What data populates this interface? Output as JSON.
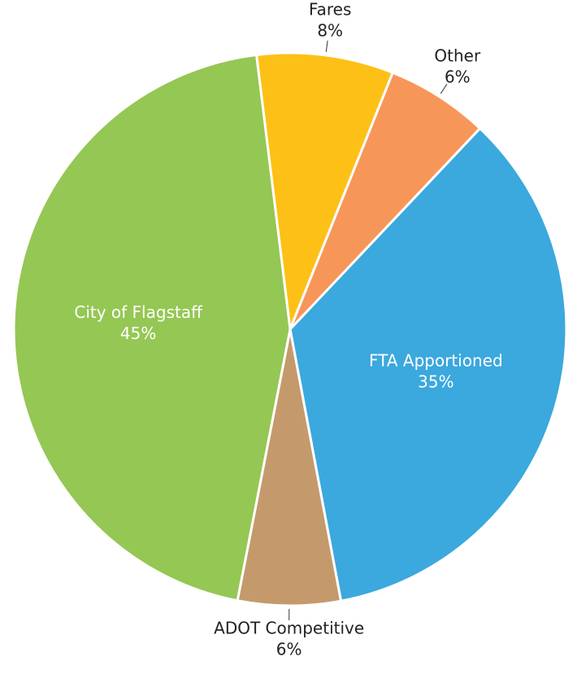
{
  "chart_data": {
    "type": "pie",
    "categories": [
      "Fares",
      "Other",
      "FTA Apportioned",
      "ADOT Competitive",
      "City of Flagstaff"
    ],
    "values": [
      8,
      6,
      35,
      6,
      45
    ],
    "value_labels": [
      "8%",
      "6%",
      "35%",
      "6%",
      "45%"
    ],
    "colors": [
      "#fdc016",
      "#f79659",
      "#3ba8de",
      "#c49a6c",
      "#95c754"
    ]
  }
}
